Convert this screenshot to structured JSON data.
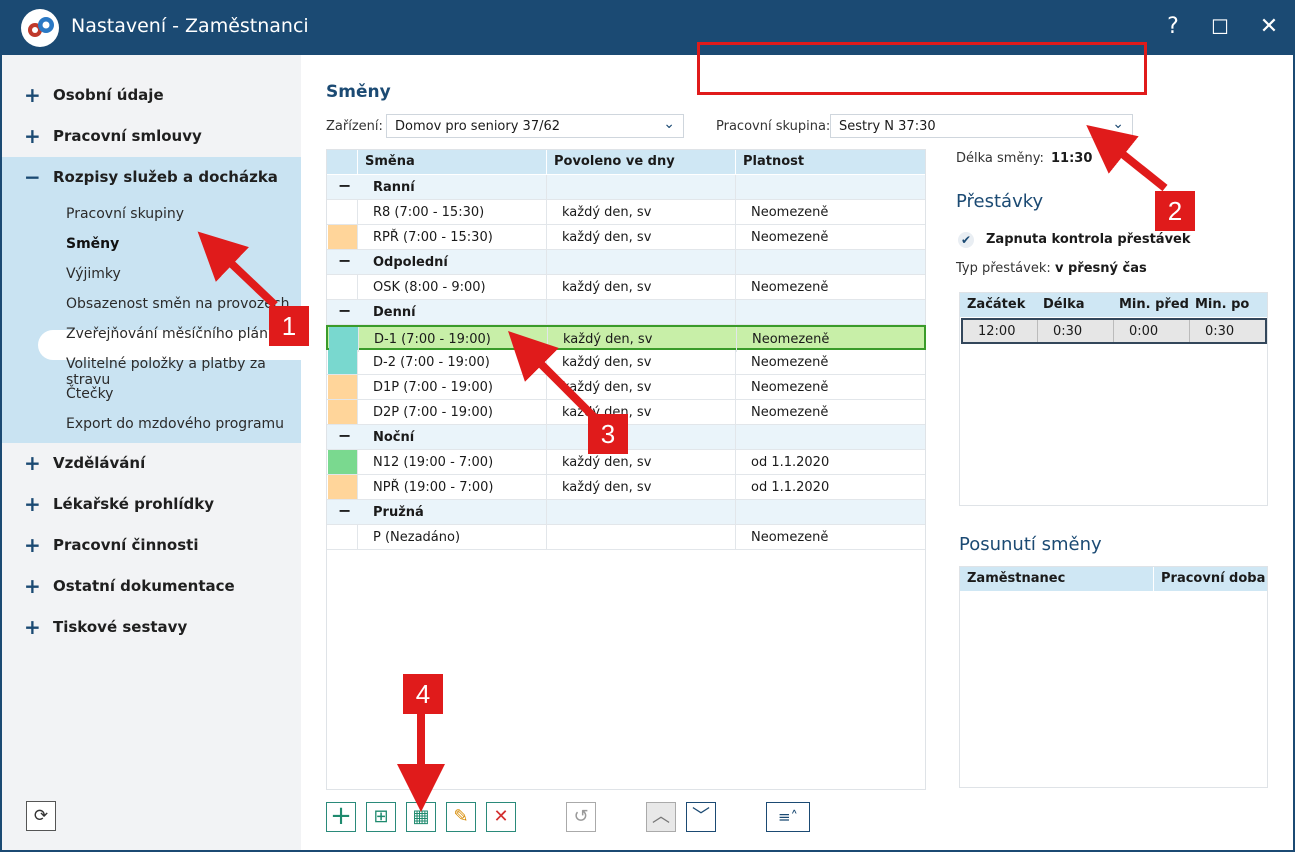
{
  "window": {
    "title": "Nastavení - Zaměstnanci",
    "help_label": "?",
    "maximize_label": "☐",
    "close_label": "✕"
  },
  "sidebar": {
    "items_top": [
      {
        "label": "Osobní údaje",
        "state": "collapsed"
      },
      {
        "label": "Pracovní smlouvy",
        "state": "collapsed"
      },
      {
        "label": "Rozpisy služeb a docházka",
        "state": "expanded"
      }
    ],
    "sub_items": [
      "Pracovní skupiny",
      "Směny",
      "Výjimky",
      "Obsazenost směn na provozech",
      "Zveřejňování měsíčního plánu",
      "Volitelné položky a platby za stravu",
      "Čtečky",
      "Export do mzdového programu"
    ],
    "active_sub": "Směny",
    "items_bottom": [
      "Vzdělávání",
      "Lékařské prohlídky",
      "Pracovní činnosti",
      "Ostatní dokumentace",
      "Tiskové sestavy"
    ],
    "plus_glyph": "+",
    "minus_glyph": "−"
  },
  "main": {
    "title": "Směny",
    "facility_label": "Zařízení:",
    "facility_value": "Domov pro seniory 37/62",
    "group_label": "Pracovní skupina:",
    "group_value": "Sestry N 37:30",
    "grid": {
      "headers": [
        "Směna",
        "Povoleno ve dny",
        "Platnost"
      ],
      "groups": [
        {
          "name": "Ranní",
          "rows": [
            {
              "shift": "R8 (7:00 - 15:30)",
              "days": "každý den, sv",
              "validity": "Neomezeně",
              "color": ""
            },
            {
              "shift": "RPŘ (7:00 - 15:30)",
              "days": "každý den, sv",
              "validity": "Neomezeně",
              "color": "#ffd59a"
            }
          ]
        },
        {
          "name": "Odpolední",
          "rows": [
            {
              "shift": "OSK (8:00 - 9:00)",
              "days": "každý den, sv",
              "validity": "Neomezeně",
              "color": ""
            }
          ]
        },
        {
          "name": "Denní",
          "rows": [
            {
              "shift": "D-1 (7:00 - 19:00)",
              "days": "každý den, sv",
              "validity": "Neomezeně",
              "color": "#79d8cf",
              "selected": true
            },
            {
              "shift": "D-2 (7:00 - 19:00)",
              "days": "každý den, sv",
              "validity": "Neomezeně",
              "color": "#79d8cf"
            },
            {
              "shift": "D1P (7:00 - 19:00)",
              "days": "každý den, sv",
              "validity": "Neomezeně",
              "color": "#ffd59a"
            },
            {
              "shift": "D2P (7:00 - 19:00)",
              "days": "každý den, sv",
              "validity": "Neomezeně",
              "color": "#ffd59a"
            }
          ]
        },
        {
          "name": "Noční",
          "rows": [
            {
              "shift": "N12 (19:00 - 7:00)",
              "days": "každý den, sv",
              "validity": "od 1.1.2020",
              "color": "#7ad98f"
            },
            {
              "shift": "NPŘ (19:00 - 7:00)",
              "days": "každý den, sv",
              "validity": "od 1.1.2020",
              "color": "#ffd59a"
            }
          ]
        },
        {
          "name": "Pružná",
          "rows": [
            {
              "shift": "P (Nezadáno)",
              "days": "",
              "validity": "Neomezeně",
              "color": ""
            }
          ]
        }
      ]
    },
    "toolbar": {
      "add": "+",
      "add_copy": "⊞",
      "add_calendar": "▦",
      "edit": "✎",
      "delete": "✕",
      "history": "↺",
      "up": "︿",
      "down": "﹀",
      "menu": "≡˄"
    }
  },
  "right": {
    "length_label": "Délka směny:",
    "length_value": "11:30",
    "breaks_title": "Přestávky",
    "break_check_label": "Zapnuta kontrola přestávek",
    "break_check_glyph": "✔",
    "break_type_label": "Typ přestávek:",
    "break_type_value": "v přesný čas",
    "breaks_headers": [
      "Začátek",
      "Délka",
      "Min. před",
      "Min. po"
    ],
    "breaks_row": [
      "12:00",
      "0:30",
      "0:00",
      "0:30"
    ],
    "shift_title": "Posunutí směny",
    "shift_headers": [
      "Zaměstnanec",
      "Pracovní doba"
    ]
  },
  "annotations": [
    "1",
    "2",
    "3",
    "4"
  ],
  "refresh_glyph": "⟳"
}
